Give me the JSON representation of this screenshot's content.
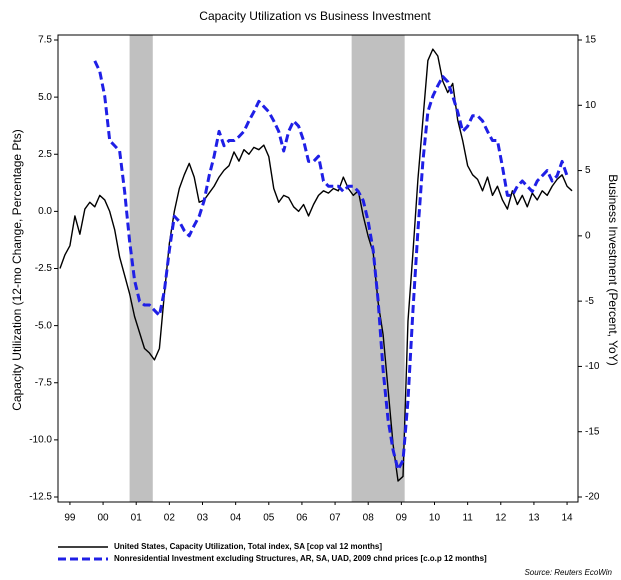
{
  "chart_data": {
    "type": "line",
    "title": "Capacity Utilization vs Business Investment",
    "ylabel": "Capacity Utilization (12-mo Change, Percentage Pts)",
    "y2label": "Business Investment (Percent, YoY)",
    "source": "Source: Reuters EcoWin",
    "xlim": [
      1999.14,
      2014.83
    ],
    "xticks": [
      {
        "value": 1999.5,
        "label": "99"
      },
      {
        "value": 2000.5,
        "label": "00"
      },
      {
        "value": 2001.5,
        "label": "01"
      },
      {
        "value": 2002.5,
        "label": "02"
      },
      {
        "value": 2003.5,
        "label": "03"
      },
      {
        "value": 2004.5,
        "label": "04"
      },
      {
        "value": 2005.5,
        "label": "05"
      },
      {
        "value": 2006.5,
        "label": "06"
      },
      {
        "value": 2007.5,
        "label": "07"
      },
      {
        "value": 2008.5,
        "label": "08"
      },
      {
        "value": 2009.5,
        "label": "09"
      },
      {
        "value": 2010.5,
        "label": "10"
      },
      {
        "value": 2011.5,
        "label": "11"
      },
      {
        "value": 2012.5,
        "label": "12"
      },
      {
        "value": 2013.5,
        "label": "13"
      },
      {
        "value": 2014.5,
        "label": "14"
      }
    ],
    "ylim": [
      -12.5,
      7.5
    ],
    "yticks": [
      7.5,
      {
        "value": 5,
        "label": "5.0"
      },
      2.5,
      {
        "value": 0,
        "label": "0.0"
      },
      -2.5,
      {
        "value": -5,
        "label": "-5.0"
      },
      -7.5,
      {
        "value": -10,
        "label": "-10.0"
      },
      -12.5
    ],
    "y2lim": [
      -20,
      15
    ],
    "y2ticks": [
      15,
      10,
      5,
      0,
      -5,
      -10,
      -15,
      -20
    ],
    "shading": [
      {
        "start": 2001.3,
        "end": 2002.0
      },
      {
        "start": 2008.0,
        "end": 2009.6
      }
    ],
    "shading_color": "#c0c0c0",
    "x": [
      1999.2,
      1999.35,
      1999.5,
      1999.65,
      1999.8,
      1999.95,
      2000.1,
      2000.25,
      2000.4,
      2000.55,
      2000.7,
      2000.85,
      2001.0,
      2001.15,
      2001.3,
      2001.45,
      2001.6,
      2001.75,
      2001.9,
      2002.05,
      2002.2,
      2002.35,
      2002.5,
      2002.65,
      2002.8,
      2002.95,
      2003.1,
      2003.25,
      2003.4,
      2003.55,
      2003.7,
      2003.85,
      2004.0,
      2004.15,
      2004.3,
      2004.45,
      2004.6,
      2004.75,
      2004.9,
      2005.05,
      2005.2,
      2005.35,
      2005.5,
      2005.65,
      2005.8,
      2005.95,
      2006.1,
      2006.25,
      2006.4,
      2006.55,
      2006.7,
      2006.85,
      2007.0,
      2007.15,
      2007.3,
      2007.45,
      2007.6,
      2007.75,
      2007.9,
      2008.05,
      2008.2,
      2008.35,
      2008.5,
      2008.65,
      2008.8,
      2008.95,
      2009.1,
      2009.25,
      2009.4,
      2009.55,
      2009.7,
      2009.85,
      2010.0,
      2010.15,
      2010.3,
      2010.45,
      2010.6,
      2010.75,
      2010.9,
      2011.05,
      2011.2,
      2011.35,
      2011.5,
      2011.65,
      2011.8,
      2011.95,
      2012.1,
      2012.25,
      2012.4,
      2012.55,
      2012.7,
      2012.85,
      2013.0,
      2013.15,
      2013.3,
      2013.45,
      2013.6,
      2013.75,
      2013.9,
      2014.05,
      2014.2,
      2014.35,
      2014.5,
      2014.65
    ],
    "series": [
      {
        "name": "United States, Capacity Utilization, Total index, SA [cop val 12 months]",
        "color": "#000000",
        "dashed": false,
        "values": [
          -2.5,
          -1.9,
          -1.5,
          -0.2,
          -1.0,
          0.1,
          0.4,
          0.2,
          0.7,
          0.5,
          0.0,
          -0.8,
          -2.0,
          -2.8,
          -3.6,
          -4.6,
          -5.3,
          -6.0,
          -6.2,
          -6.5,
          -6.0,
          -3.6,
          -1.4,
          0.0,
          1.0,
          1.6,
          2.1,
          1.5,
          0.4,
          0.5,
          0.8,
          1.1,
          1.5,
          1.8,
          2.0,
          2.6,
          2.2,
          2.7,
          2.5,
          2.8,
          2.7,
          2.9,
          2.4,
          1.0,
          0.4,
          0.7,
          0.6,
          0.2,
          0.0,
          0.3,
          -0.2,
          0.3,
          0.7,
          0.9,
          0.8,
          1.0,
          0.9,
          1.5,
          1.0,
          0.7,
          0.9,
          -0.2,
          -1.1,
          -1.8,
          -4.0,
          -5.4,
          -7.8,
          -10.2,
          -11.8,
          -11.6,
          -4.8,
          -1.8,
          1.4,
          4.0,
          6.6,
          7.1,
          6.8,
          5.7,
          5.2,
          5.6,
          4.0,
          3.1,
          2.0,
          1.6,
          1.4,
          0.9,
          1.5,
          0.7,
          1.1,
          0.5,
          0.1,
          0.9,
          0.3,
          0.7,
          0.2,
          0.8,
          0.5,
          0.9,
          0.7,
          1.1,
          1.4,
          1.6,
          1.1,
          0.9
        ]
      },
      {
        "name": "Nonresidential Investment excluding Structures, AR, SA, UAD, 2009 chnd prices [c.o.p 12 months]",
        "color": "#1f1fe6",
        "dashed": true,
        "axis": "y2",
        "values": [
          null,
          null,
          null,
          null,
          null,
          null,
          null,
          13.4,
          12.6,
          10.7,
          7.3,
          6.9,
          6.5,
          3.4,
          -0.4,
          -3.4,
          -5.0,
          -5.3,
          -5.3,
          -5.7,
          -6.1,
          -4.2,
          -1.1,
          1.5,
          1.1,
          0.4,
          0.0,
          0.8,
          1.5,
          2.7,
          4.6,
          6.1,
          8.0,
          6.9,
          7.3,
          7.3,
          7.6,
          8.0,
          8.8,
          9.5,
          10.3,
          9.9,
          9.5,
          8.8,
          8.0,
          6.5,
          8.0,
          8.8,
          8.4,
          7.3,
          5.7,
          5.7,
          6.1,
          4.2,
          3.8,
          3.8,
          3.8,
          3.4,
          3.8,
          3.8,
          3.4,
          2.7,
          1.1,
          -1.1,
          -5.0,
          -10.3,
          -14.1,
          -16.4,
          -17.9,
          -17.2,
          -12.6,
          -5.7,
          0.4,
          5.7,
          9.5,
          10.7,
          11.5,
          12.2,
          11.8,
          10.7,
          9.5,
          8.0,
          8.4,
          9.2,
          9.2,
          8.8,
          8.0,
          7.3,
          7.3,
          5.3,
          3.1,
          3.1,
          3.8,
          4.2,
          3.8,
          3.4,
          4.2,
          4.6,
          5.0,
          4.2,
          4.6,
          5.7,
          4.6,
          null
        ]
      }
    ]
  }
}
